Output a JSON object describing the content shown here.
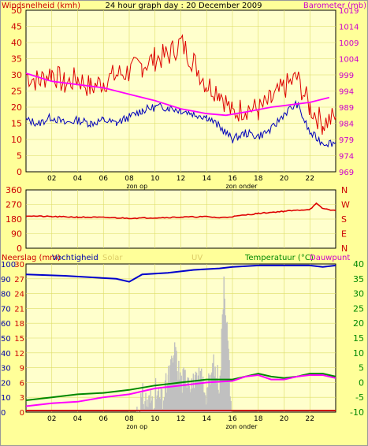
{
  "colors": {
    "bg": "#ffff99",
    "plot_bg": "#ffffcc",
    "grid": "#dddd66",
    "wind_max": "#dd0000",
    "wind_avg": "#0000bb",
    "baro": "#ff00ff",
    "dir": "#dd0000",
    "humidity": "#0000cc",
    "rain": "#c0c0c0",
    "temp": "#008800",
    "dew": "#ff00ff",
    "solar": "#ffaa00",
    "uv": "#cc0000",
    "left_axis_text": "#cc0000",
    "right_axis_text": "#cc00cc",
    "temp_axis_text": "#008800"
  },
  "chart_data": [
    {
      "id": "wind_baro",
      "type": "line",
      "title": "24 hour graph day : 20 December 2009",
      "left_label": "Windsnelheid (kmh)",
      "right_label": "Barometer (mb)",
      "left_ticks": [
        "50",
        "45",
        "40",
        "35",
        "30",
        "25",
        "20",
        "15",
        "10",
        "5",
        "0"
      ],
      "right_ticks": [
        "1019",
        "1014",
        "1009",
        "1004",
        "999",
        "994",
        "989",
        "984",
        "979",
        "974",
        "969"
      ],
      "ylim_left": [
        0,
        50
      ],
      "ylim_right": [
        969,
        1019
      ],
      "x_ticks": [
        "02",
        "04",
        "06",
        "08",
        "10",
        "12",
        "14",
        "16",
        "18",
        "20",
        "22"
      ],
      "x_marker_labels": [
        "zon op",
        "zon onder"
      ],
      "x_marker_hours": [
        8.6,
        16.7
      ],
      "series": [
        {
          "name": "Windsnelheid",
          "key": "wind_max"
        },
        {
          "name": "",
          "key": "wind_avg"
        },
        {
          "name": "Barometer",
          "key": "baro"
        }
      ],
      "baro_points": [
        [
          0,
          999.5
        ],
        [
          2,
          997
        ],
        [
          4,
          996
        ],
        [
          6,
          995
        ],
        [
          8,
          993
        ],
        [
          10,
          991
        ],
        [
          12,
          988.5
        ],
        [
          14,
          987
        ],
        [
          15.5,
          986.5
        ],
        [
          17,
          987.5
        ],
        [
          19,
          989
        ],
        [
          20,
          989.5
        ],
        [
          22,
          990.5
        ],
        [
          23.5,
          992
        ]
      ],
      "wind_avg_points": [
        [
          0,
          16
        ],
        [
          1,
          15
        ],
        [
          2,
          17
        ],
        [
          3,
          15
        ],
        [
          4,
          16
        ],
        [
          5,
          15
        ],
        [
          6,
          16
        ],
        [
          7,
          15
        ],
        [
          8,
          17
        ],
        [
          9,
          19
        ],
        [
          10,
          20
        ],
        [
          11,
          20
        ],
        [
          12,
          19
        ],
        [
          13,
          18
        ],
        [
          14,
          17
        ],
        [
          15,
          14
        ],
        [
          16,
          10
        ],
        [
          17,
          12
        ],
        [
          18,
          11
        ],
        [
          19,
          13
        ],
        [
          20,
          18
        ],
        [
          21,
          21
        ],
        [
          22,
          12
        ],
        [
          23,
          9
        ],
        [
          24,
          9
        ]
      ],
      "wind_max_points": [
        [
          0,
          30
        ],
        [
          1,
          28
        ],
        [
          2,
          31
        ],
        [
          3,
          27
        ],
        [
          4,
          29
        ],
        [
          5,
          26
        ],
        [
          6,
          28
        ],
        [
          7,
          30
        ],
        [
          8,
          31
        ],
        [
          9,
          33
        ],
        [
          10,
          35
        ],
        [
          11,
          36
        ],
        [
          12,
          40
        ],
        [
          13,
          34
        ],
        [
          14,
          27
        ],
        [
          15,
          25
        ],
        [
          16,
          18
        ],
        [
          17,
          20
        ],
        [
          18,
          19
        ],
        [
          19,
          22
        ],
        [
          20,
          26
        ],
        [
          21,
          29
        ],
        [
          22,
          20
        ],
        [
          23,
          15
        ],
        [
          24,
          17
        ]
      ]
    },
    {
      "id": "wind_dir",
      "type": "line",
      "left_ticks": [
        "360",
        "270",
        "180",
        "90",
        "0"
      ],
      "right_ticks": [
        "N",
        "W",
        "S",
        "E",
        "N"
      ],
      "ylim": [
        0,
        360
      ],
      "series": [
        {
          "name": "",
          "key": "dir"
        }
      ],
      "dir_points": [
        [
          0,
          200
        ],
        [
          2,
          195
        ],
        [
          4,
          192
        ],
        [
          6,
          190
        ],
        [
          8,
          185
        ],
        [
          10,
          188
        ],
        [
          12,
          192
        ],
        [
          14,
          195
        ],
        [
          15,
          188
        ],
        [
          16,
          195
        ],
        [
          18,
          215
        ],
        [
          20,
          228
        ],
        [
          22,
          240
        ],
        [
          22.5,
          275
        ],
        [
          23,
          245
        ],
        [
          24,
          232
        ]
      ]
    },
    {
      "id": "rain_hum_temp",
      "type": "line",
      "left_label": "Neerslag (mm)",
      "left_label2": "Vochtigheid",
      "legend_solar": "Solar",
      "legend_uv": "UV",
      "right_label": "Temperatuur (°C)",
      "right_label2": "Dauwpunt",
      "left_ticks_hum": [
        "100",
        "90",
        "80",
        "70",
        "60",
        "50",
        "40",
        "30",
        "20",
        "10",
        "0"
      ],
      "left_ticks_rain": [
        "30",
        "27",
        "24",
        "21",
        "18",
        "15",
        "12",
        "9",
        "6",
        "3",
        "0"
      ],
      "right_ticks": [
        "40",
        "35",
        "30",
        "25",
        "20",
        "15",
        "10",
        "5",
        "0",
        "-5",
        "-10"
      ],
      "ylim_hum": [
        0,
        100
      ],
      "ylim_temp": [
        -10,
        40
      ],
      "x_ticks": [
        "02",
        "04",
        "06",
        "08",
        "10",
        "12",
        "14",
        "16",
        "18",
        "20",
        "22"
      ],
      "x_marker_labels": [
        "zon op",
        "zon onder"
      ],
      "series": [
        {
          "name": "Vochtigheid",
          "key": "humidity"
        },
        {
          "name": "Temperatuur",
          "key": "temp"
        },
        {
          "name": "Dauwpunt",
          "key": "dew"
        }
      ],
      "humidity_points": [
        [
          0,
          93
        ],
        [
          3,
          92
        ],
        [
          5,
          91
        ],
        [
          7,
          90
        ],
        [
          8,
          88
        ],
        [
          9,
          93
        ],
        [
          11,
          94
        ],
        [
          13,
          96
        ],
        [
          15,
          97
        ],
        [
          16,
          98
        ],
        [
          18,
          99
        ],
        [
          20,
          99
        ],
        [
          22,
          99
        ],
        [
          23,
          98
        ],
        [
          24,
          99
        ]
      ],
      "temp_points": [
        [
          0,
          -6
        ],
        [
          2,
          -5
        ],
        [
          4,
          -4
        ],
        [
          6,
          -3.5
        ],
        [
          8,
          -2.5
        ],
        [
          10,
          -1
        ],
        [
          12,
          0
        ],
        [
          14,
          1
        ],
        [
          16,
          1
        ],
        [
          17,
          2
        ],
        [
          18,
          3
        ],
        [
          19,
          2
        ],
        [
          20,
          1.5
        ],
        [
          21,
          2
        ],
        [
          22,
          3
        ],
        [
          23,
          3
        ],
        [
          24,
          2
        ]
      ],
      "dew_points": [
        [
          0,
          -8
        ],
        [
          2,
          -7
        ],
        [
          4,
          -6.5
        ],
        [
          6,
          -5
        ],
        [
          8,
          -4
        ],
        [
          10,
          -2
        ],
        [
          12,
          -1
        ],
        [
          14,
          0
        ],
        [
          16,
          0.5
        ],
        [
          17,
          2
        ],
        [
          18,
          2.5
        ],
        [
          19,
          1
        ],
        [
          20,
          1
        ],
        [
          21,
          2
        ],
        [
          22,
          2.5
        ],
        [
          23,
          2.5
        ],
        [
          24,
          1.5
        ]
      ],
      "rain_rate_points": [
        [
          8.5,
          0
        ],
        [
          9,
          3
        ],
        [
          9.5,
          2
        ],
        [
          10,
          4
        ],
        [
          10.5,
          2
        ],
        [
          11,
          7
        ],
        [
          11.5,
          12
        ],
        [
          12,
          6
        ],
        [
          12.5,
          8
        ],
        [
          13,
          5
        ],
        [
          13.5,
          7
        ],
        [
          14,
          4
        ],
        [
          14.5,
          9
        ],
        [
          15,
          6
        ],
        [
          15.3,
          28
        ],
        [
          15.6,
          14
        ],
        [
          15.9,
          0
        ]
      ]
    }
  ]
}
